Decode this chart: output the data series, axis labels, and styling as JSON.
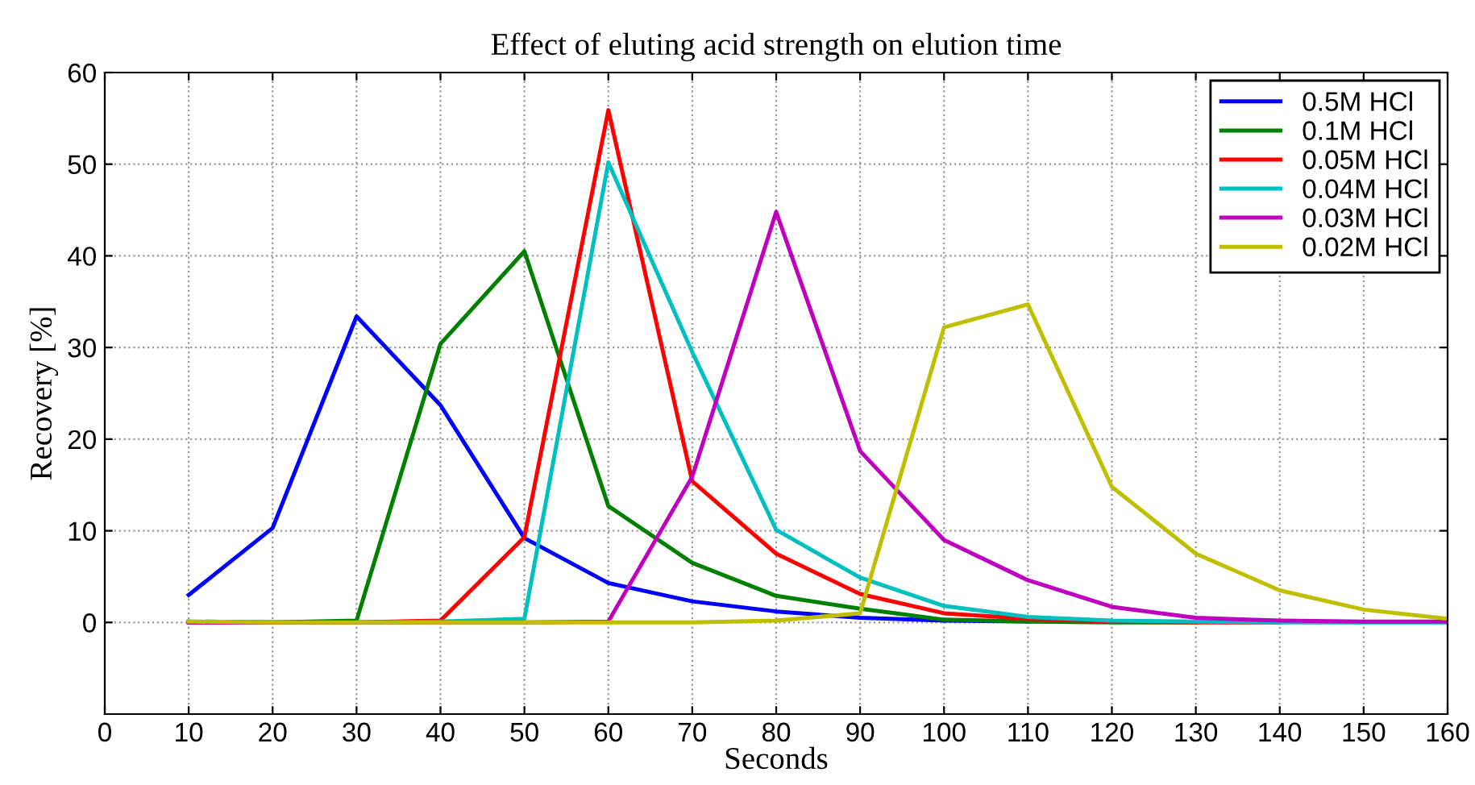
{
  "chart_data": {
    "type": "line",
    "title": "Effect of eluting acid strength on elution time",
    "xlabel": "Seconds",
    "ylabel": "Recovery [%]",
    "x": [
      10,
      20,
      30,
      40,
      50,
      60,
      70,
      80,
      90,
      100,
      110,
      120,
      130,
      140,
      150,
      160
    ],
    "series": [
      {
        "name": "0.5M HCl",
        "color": "#0000ff",
        "values": [
          3,
          10.3,
          33.4,
          23.7,
          9.2,
          4.3,
          2.3,
          1.2,
          0.5,
          0.2,
          0.1,
          null,
          null,
          null,
          null,
          null
        ]
      },
      {
        "name": "0.1M HCl",
        "color": "#008000",
        "values": [
          0.1,
          0,
          0.2,
          30.4,
          40.5,
          12.7,
          6.5,
          2.9,
          1.5,
          0.3,
          0.1,
          0,
          0,
          null,
          null,
          null
        ]
      },
      {
        "name": "0.05M HCl",
        "color": "#ff0000",
        "values": [
          0,
          0,
          0,
          0.2,
          9.3,
          55.9,
          15.4,
          7.5,
          3.1,
          1,
          0.4,
          0.1,
          0,
          0,
          null,
          null
        ]
      },
      {
        "name": "0.04M HCl",
        "color": "#00bfbf",
        "values": [
          null,
          null,
          0,
          0.1,
          0.4,
          50.2,
          29.5,
          10.1,
          4.9,
          1.8,
          0.6,
          0.2,
          0.1,
          0,
          0,
          0
        ]
      },
      {
        "name": "0.03M HCl",
        "color": "#bf00bf",
        "values": [
          0,
          0,
          0,
          0,
          0,
          0.1,
          15.9,
          44.8,
          18.7,
          9,
          4.6,
          1.7,
          0.5,
          0.2,
          0.1,
          0.1
        ]
      },
      {
        "name": "0.02M HCl",
        "color": "#bfbf00",
        "values": [
          0.1,
          0,
          0,
          0,
          0,
          0,
          0,
          0.2,
          1,
          32.2,
          34.7,
          14.8,
          7.5,
          3.5,
          1.4,
          0.4
        ]
      }
    ],
    "xlim": [
      0,
      160
    ],
    "xticks": [
      0,
      10,
      20,
      30,
      40,
      50,
      60,
      70,
      80,
      90,
      100,
      110,
      120,
      130,
      140,
      150,
      160
    ],
    "ylim": [
      -10,
      60
    ],
    "yticks": [
      0,
      10,
      20,
      30,
      40,
      50,
      60
    ],
    "grid": true,
    "legend": "top right",
    "line_style": "solid",
    "marker": "none"
  }
}
